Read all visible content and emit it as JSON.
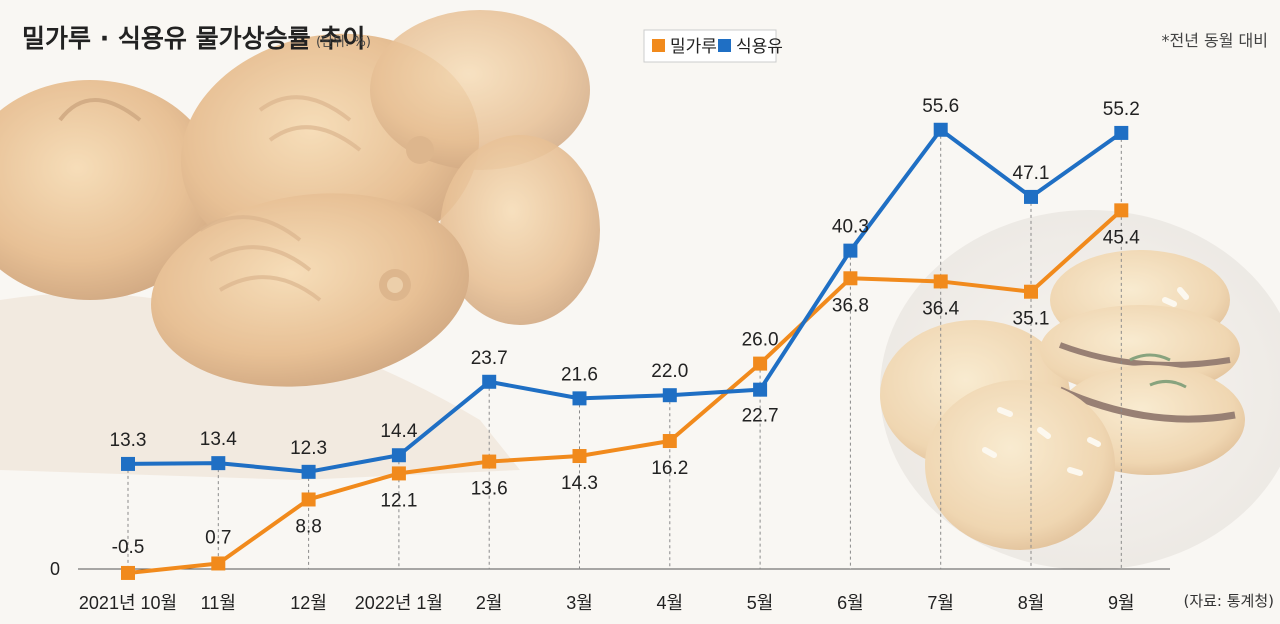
{
  "title": "밀가루 · 식용유 물가상승률 추이",
  "unit": "(단위: %)",
  "note": "*전년 동월 대비",
  "source": "(자료: 통계청)",
  "chart_data": {
    "type": "line",
    "categories": [
      "2021년 10월",
      "11월",
      "12월",
      "2022년 1월",
      "2월",
      "3월",
      "4월",
      "5월",
      "6월",
      "7월",
      "8월",
      "9월"
    ],
    "series": [
      {
        "name": "밀가루",
        "color": "#f18a1c",
        "values": [
          -0.5,
          0.7,
          8.8,
          12.1,
          13.6,
          14.3,
          16.2,
          26.0,
          36.8,
          36.4,
          35.1,
          45.4
        ],
        "labels": [
          "-0.5",
          "0.7",
          "8.8",
          "12.1",
          "13.6",
          "14.3",
          "16.2",
          "26.0",
          "36.8",
          "36.4",
          "35.1",
          "45.4"
        ]
      },
      {
        "name": "식용유",
        "color": "#1f6fc4",
        "values": [
          13.3,
          13.4,
          12.3,
          14.4,
          23.7,
          21.6,
          22.0,
          22.7,
          40.3,
          55.6,
          47.1,
          55.2
        ],
        "labels": [
          "13.3",
          "13.4",
          "12.3",
          "14.4",
          "23.7",
          "21.6",
          "22.0",
          "22.7",
          "40.3",
          "55.6",
          "47.1",
          "55.2"
        ]
      }
    ],
    "y_tick_labels": [
      "0"
    ],
    "y_ticks": [
      0
    ],
    "ylim": [
      -1,
      62
    ],
    "grid": false,
    "legend_position": "top-center"
  }
}
